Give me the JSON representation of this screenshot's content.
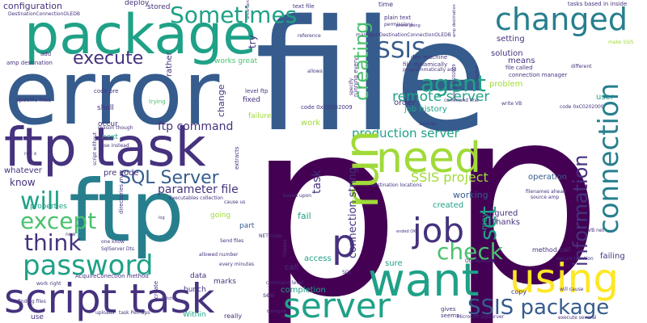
{
  "words": {
    "p": "p",
    "file": "file",
    "error": "error",
    "ftp": "ftp",
    "package": "package",
    "ftp_task": "ftp task",
    "script_task": "script task",
    "using": "using",
    "want": "want",
    "run": "run",
    "need": "need",
    "server": "server",
    "connection": "connection",
    "changed": "changed",
    "password": "password",
    "job": "job",
    "sometimes": "Sometimes",
    "ssis_package": "SSIS package",
    "information": "information",
    "sql_server": "SQL Server",
    "except": "except",
    "will": "will",
    "think": "think",
    "check": "check",
    "agent": "agent",
    "execute": "execute",
    "creating": "creating",
    "ssis": "SSIS",
    "set": "set",
    "remote_server": "remote server",
    "production_server": "production server",
    "connection_string": "connection string",
    "ftp_command": "ftp command",
    "parameter_file": "parameter file",
    "ssis_project": "SSIS project",
    "configuration": "configuration",
    "deploy": "deploy",
    "stored": "stored",
    "try": "try",
    "task": "task",
    "working": "working",
    "fail": "fail",
    "created": "created",
    "figured": "figured",
    "thanks": "Thanks",
    "operation": "operation",
    "failing": "failing",
    "user": "user",
    "problem": "problem",
    "setting": "setting",
    "means": "means",
    "solution": "solution",
    "order": "order",
    "job_history": "job history",
    "work": "work",
    "call": "call",
    "access": "access",
    "sure": "sure",
    "completion": "completion",
    "know": "know",
    "properties": "properties",
    "whatever": "whatever",
    "pre_code": "pre code",
    "next": "next",
    "occur": "occur",
    "shell": "shell",
    "rather": "rather",
    "works_great": "works great",
    "change": "change",
    "fixed": "fixed",
    "failure": "failure",
    "part": "part",
    "going": "going",
    "within": "Within",
    "data": "data",
    "marks": "marks",
    "bunch": "bunch",
    "use": "use",
    "really": "really",
    "see": "see",
    "may": "may",
    "copy": "copy",
    "method_call": "method call",
    "time": "time",
    "plain_text": "plain text",
    "text_file": "text file",
    "dev_machine": "dev machine",
    "file_dynamically": "file dynamically",
    "file_called": "file called",
    "connection_manager": "connection manager",
    "tasks_based_in_inside": "tasks based in inside",
    "add": "add",
    "amp_destination": "amp destination",
    "specific_files": "specific files",
    "code_pre": "code pre",
    "trying": "trying",
    "level_ftp": "level ftp",
    "code_0xc0202009": "code 0xC0202009",
    "acquireconection_method": "AcquireConection method",
    "reason_though": "reason though",
    "use_instead": "use instead",
    "finding_files": "finding files",
    "work_right": "work right",
    "create": "create",
    "task_perhaps": "task Perhaps",
    "uploads": "uploads",
    "seems": "seems",
    "gives": "gives",
    "microsoft_sqlserver": "Microsoft SqlServer",
    "execute_several": "execute several",
    "will_cause": "will cause",
    "secure_location": "secure location",
    "filenames_ahead": "filenames ahead",
    "source_amp": "source amp",
    "write_vb": "write VB",
    "every_minutes": "every minutes",
    "allowed_number": "allowed number",
    "based_upon": "based upon",
    "command_level": "command level",
    "destination_locations": "destination locations",
    "cause_us": "cause us",
    "send_files": "Send files",
    "red_x": "red x",
    "new": "new",
    "one_know": "one know",
    "sqlserver_dts": "SqlServer Dts",
    "directories_may": "directories may",
    "executables_collection": "Executables collection",
    "different": "different",
    "amp_destination_2": "amp destination",
    "code_0xc0202009_2": "code 0xC0202009",
    "command_line": "command line",
    "programmatically_add": "programmatically add",
    "manager_destinationconnectionoledb": "manager DestinationConnectionOLEDB",
    "destinationconnectionoledb": "DestinationConnectionOLEDB",
    "reference": "reference",
    "allows": "allows",
    "running_every": "running every",
    "permissions": "permissions",
    "specify": "specify",
    "extracts": "extracts",
    "script_without": "script without",
    "ssis_runtime": "Dts Runtime",
    "net_code": "NET code",
    "sql": "SQL",
    "vb_net": "VB net",
    "make_ssis": "make SSIS",
    "send_ftp": "Send ftp",
    "ended_ok": "ended OK",
    "prove_going": "prove going",
    "blackgate": "blackgate",
    "batch": "batch",
    "classes": "classes",
    "log": "log",
    "started": "started",
    "uncertain": "uncertain"
  },
  "colors": {
    "deep_purple": "#440154",
    "indigo": "#46327e",
    "blue": "#365c8d",
    "slate_teal": "#277f8e",
    "teal": "#1fa187",
    "green": "#4ac16d",
    "lime": "#a0da39",
    "yellow": "#fde725"
  }
}
